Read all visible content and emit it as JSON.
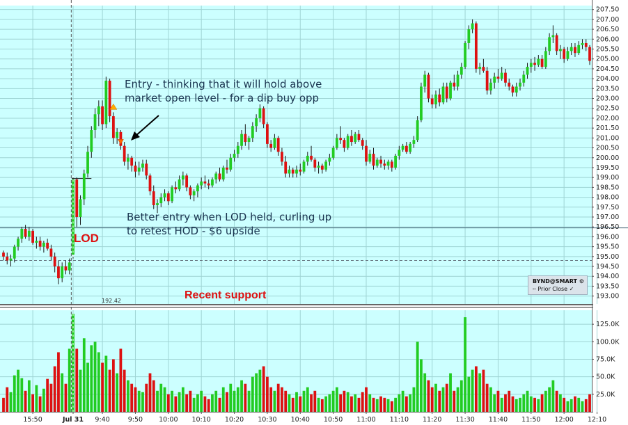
{
  "chart_data": {
    "type": "candlestick",
    "price_panel": {
      "ylim": [
        192.6,
        207.7
      ],
      "ytick_labels": [
        "193.00",
        "193.50",
        "194.00",
        "194.50",
        "195.00",
        "195.50",
        "196.00",
        "196.50",
        "197.00",
        "197.50",
        "198.00",
        "198.50",
        "199.00",
        "199.50",
        "200.00",
        "200.50",
        "201.00",
        "201.50",
        "202.00",
        "202.50",
        "203.00",
        "203.50",
        "204.00",
        "204.50",
        "205.00",
        "205.50",
        "206.00",
        "206.50",
        "207.00",
        "207.50"
      ],
      "support_value": "192.42",
      "resistance_line": 196.45,
      "prior_close": 194.8,
      "lod_open_marker": 198.95
    },
    "volume_panel": {
      "ylim": [
        0,
        145000
      ],
      "ytick_values": [
        25000,
        50000,
        75000,
        100000,
        125000
      ],
      "ytick_labels": [
        "25.0K",
        "50.0K",
        "75.0K",
        "100.0K",
        "125.0K"
      ]
    },
    "x_tick_labels": [
      "15:50",
      "Jul 31",
      "9:40",
      "9:50",
      "10:00",
      "10:10",
      "10:20",
      "10:30",
      "10:40",
      "10:50",
      "11:00",
      "11:10",
      "11:20",
      "11:30",
      "11:40",
      "11:50",
      "12:00",
      "12:10"
    ],
    "x_tick_bars": [
      8,
      19,
      27,
      36,
      45,
      54,
      63,
      72,
      81,
      90,
      99,
      108,
      117,
      126,
      135,
      144,
      153,
      162
    ],
    "day_break_bar": 19,
    "bars": [
      [
        195.2,
        195.3,
        194.8,
        195.0,
        20000
      ],
      [
        195.0,
        195.2,
        194.6,
        194.8,
        35000
      ],
      [
        194.8,
        195.1,
        194.5,
        194.9,
        28000
      ],
      [
        194.9,
        195.6,
        194.7,
        195.5,
        52000
      ],
      [
        195.5,
        196.0,
        195.3,
        195.9,
        60000
      ],
      [
        195.9,
        196.5,
        195.7,
        196.4,
        48000
      ],
      [
        196.4,
        196.6,
        195.9,
        196.0,
        30000
      ],
      [
        196.0,
        196.5,
        195.8,
        196.3,
        45000
      ],
      [
        196.3,
        196.4,
        195.6,
        195.7,
        25000
      ],
      [
        195.7,
        196.0,
        195.4,
        195.8,
        38000
      ],
      [
        195.8,
        196.0,
        195.3,
        195.5,
        22000
      ],
      [
        195.5,
        195.8,
        195.2,
        195.7,
        33000
      ],
      [
        195.7,
        195.9,
        195.3,
        195.4,
        47000
      ],
      [
        195.4,
        195.6,
        194.8,
        195.0,
        40000
      ],
      [
        195.0,
        195.2,
        194.2,
        194.5,
        65000
      ],
      [
        194.5,
        194.8,
        193.6,
        193.9,
        85000
      ],
      [
        193.9,
        194.7,
        193.7,
        194.5,
        55000
      ],
      [
        194.5,
        194.8,
        194.1,
        194.3,
        40000
      ],
      [
        194.3,
        194.9,
        194.1,
        194.7,
        90000
      ],
      [
        195.1,
        199.1,
        194.9,
        198.9,
        140000
      ],
      [
        198.9,
        199.0,
        196.5,
        197.0,
        90000
      ],
      [
        197.0,
        198.1,
        196.6,
        197.9,
        60000
      ],
      [
        197.9,
        199.4,
        197.6,
        199.2,
        105000
      ],
      [
        199.2,
        200.6,
        199.0,
        200.3,
        70000
      ],
      [
        200.3,
        201.6,
        200.0,
        201.4,
        95000
      ],
      [
        201.4,
        202.5,
        201.0,
        202.2,
        100000
      ],
      [
        202.2,
        202.9,
        201.6,
        202.6,
        85000
      ],
      [
        202.6,
        202.9,
        201.4,
        201.7,
        70000
      ],
      [
        201.7,
        204.1,
        201.5,
        203.9,
        80000
      ],
      [
        203.9,
        204.0,
        201.8,
        202.1,
        60000
      ],
      [
        202.1,
        202.3,
        200.7,
        201.0,
        75000
      ],
      [
        201.0,
        201.5,
        200.7,
        201.3,
        55000
      ],
      [
        201.3,
        201.4,
        200.4,
        200.6,
        90000
      ],
      [
        200.6,
        200.8,
        199.6,
        199.8,
        60000
      ],
      [
        199.8,
        200.2,
        199.4,
        200.0,
        45000
      ],
      [
        200.0,
        200.1,
        199.3,
        199.6,
        40000
      ],
      [
        199.6,
        199.8,
        199.0,
        199.3,
        35000
      ],
      [
        199.3,
        199.8,
        199.1,
        199.5,
        30000
      ],
      [
        199.5,
        199.9,
        199.3,
        199.7,
        28000
      ],
      [
        199.7,
        199.9,
        198.9,
        199.1,
        40000
      ],
      [
        199.1,
        199.2,
        198.1,
        198.3,
        55000
      ],
      [
        198.3,
        198.6,
        197.4,
        197.6,
        45000
      ],
      [
        197.6,
        197.9,
        197.2,
        197.7,
        30000
      ],
      [
        197.7,
        198.2,
        197.5,
        198.0,
        40000
      ],
      [
        198.0,
        198.4,
        197.8,
        198.2,
        35000
      ],
      [
        198.2,
        198.3,
        197.6,
        197.8,
        25000
      ],
      [
        197.8,
        198.6,
        197.7,
        198.5,
        30000
      ],
      [
        198.5,
        198.8,
        198.2,
        198.4,
        22000
      ],
      [
        198.4,
        199.1,
        198.3,
        198.9,
        28000
      ],
      [
        198.9,
        199.3,
        198.6,
        199.1,
        35000
      ],
      [
        199.1,
        199.2,
        198.3,
        198.5,
        25000
      ],
      [
        198.5,
        198.6,
        197.9,
        198.1,
        30000
      ],
      [
        198.1,
        198.4,
        197.8,
        198.3,
        20000
      ],
      [
        198.3,
        198.7,
        198.0,
        198.6,
        25000
      ],
      [
        198.6,
        199.0,
        198.4,
        198.8,
        30000
      ],
      [
        198.8,
        199.1,
        198.5,
        198.7,
        22000
      ],
      [
        198.7,
        198.9,
        198.4,
        198.6,
        18000
      ],
      [
        198.6,
        199.0,
        198.5,
        198.9,
        25000
      ],
      [
        198.9,
        199.3,
        198.7,
        199.2,
        30000
      ],
      [
        199.2,
        199.5,
        198.8,
        198.9,
        20000
      ],
      [
        198.9,
        199.6,
        198.8,
        199.5,
        35000
      ],
      [
        199.5,
        199.9,
        199.2,
        199.4,
        28000
      ],
      [
        199.4,
        200.2,
        199.3,
        200.0,
        40000
      ],
      [
        200.0,
        200.4,
        199.8,
        200.2,
        30000
      ],
      [
        200.2,
        200.8,
        200.0,
        200.6,
        35000
      ],
      [
        200.6,
        201.4,
        200.4,
        201.2,
        45000
      ],
      [
        201.2,
        201.7,
        200.6,
        200.8,
        40000
      ],
      [
        200.8,
        201.1,
        200.4,
        201.0,
        30000
      ],
      [
        201.0,
        201.8,
        200.8,
        201.6,
        50000
      ],
      [
        201.6,
        202.2,
        201.3,
        202.0,
        55000
      ],
      [
        202.0,
        202.7,
        201.8,
        202.5,
        60000
      ],
      [
        202.5,
        202.6,
        201.5,
        201.7,
        65000
      ],
      [
        201.7,
        201.8,
        200.5,
        200.7,
        50000
      ],
      [
        200.7,
        200.9,
        200.3,
        200.5,
        35000
      ],
      [
        200.5,
        201.2,
        200.4,
        201.0,
        30000
      ],
      [
        201.0,
        201.1,
        200.1,
        200.3,
        40000
      ],
      [
        200.3,
        200.5,
        199.6,
        199.8,
        35000
      ],
      [
        199.8,
        200.1,
        199.0,
        199.2,
        30000
      ],
      [
        199.2,
        199.6,
        199.0,
        199.4,
        25000
      ],
      [
        199.4,
        199.5,
        199.0,
        199.2,
        20000
      ],
      [
        199.2,
        199.6,
        199.0,
        199.4,
        28000
      ],
      [
        199.4,
        199.7,
        199.1,
        199.3,
        22000
      ],
      [
        199.3,
        199.9,
        199.2,
        199.8,
        30000
      ],
      [
        199.8,
        200.3,
        199.6,
        200.1,
        35000
      ],
      [
        200.1,
        200.6,
        199.8,
        199.9,
        25000
      ],
      [
        199.9,
        200.0,
        199.3,
        199.5,
        30000
      ],
      [
        199.5,
        199.8,
        199.2,
        199.6,
        20000
      ],
      [
        199.6,
        199.7,
        199.2,
        199.4,
        18000
      ],
      [
        199.4,
        199.9,
        199.3,
        199.8,
        22000
      ],
      [
        199.8,
        200.2,
        199.6,
        200.0,
        25000
      ],
      [
        200.0,
        200.6,
        199.9,
        200.5,
        30000
      ],
      [
        200.5,
        201.2,
        200.4,
        201.0,
        35000
      ],
      [
        201.0,
        201.6,
        200.7,
        200.9,
        25000
      ],
      [
        200.9,
        201.0,
        200.3,
        200.5,
        30000
      ],
      [
        200.5,
        201.2,
        200.4,
        201.1,
        28000
      ],
      [
        201.1,
        201.4,
        200.6,
        200.8,
        22000
      ],
      [
        200.8,
        201.3,
        200.7,
        201.2,
        25000
      ],
      [
        201.2,
        201.4,
        200.8,
        200.9,
        20000
      ],
      [
        200.9,
        201.0,
        200.4,
        200.6,
        28000
      ],
      [
        200.6,
        200.9,
        199.6,
        199.8,
        35000
      ],
      [
        199.8,
        200.4,
        199.7,
        200.2,
        25000
      ],
      [
        200.2,
        200.5,
        199.4,
        199.6,
        20000
      ],
      [
        199.6,
        200.0,
        199.5,
        199.9,
        18000
      ],
      [
        199.9,
        200.1,
        199.5,
        199.7,
        22000
      ],
      [
        199.7,
        199.9,
        199.4,
        199.6,
        20000
      ],
      [
        199.6,
        199.9,
        199.4,
        199.8,
        18000
      ],
      [
        199.8,
        199.9,
        199.3,
        199.5,
        15000
      ],
      [
        199.5,
        200.2,
        199.4,
        200.1,
        20000
      ],
      [
        200.1,
        200.6,
        199.9,
        200.4,
        25000
      ],
      [
        200.4,
        200.7,
        200.3,
        200.6,
        30000
      ],
      [
        200.6,
        200.8,
        200.2,
        200.3,
        22000
      ],
      [
        200.3,
        200.8,
        200.2,
        200.7,
        25000
      ],
      [
        200.7,
        201.1,
        200.5,
        200.9,
        35000
      ],
      [
        200.9,
        202.1,
        200.8,
        201.9,
        100000
      ],
      [
        201.9,
        203.8,
        201.8,
        203.6,
        75000
      ],
      [
        203.6,
        204.4,
        203.3,
        204.2,
        55000
      ],
      [
        204.2,
        204.3,
        202.8,
        203.0,
        45000
      ],
      [
        203.0,
        203.2,
        202.5,
        202.7,
        35000
      ],
      [
        202.7,
        203.4,
        202.5,
        203.2,
        40000
      ],
      [
        203.2,
        203.5,
        202.6,
        202.8,
        30000
      ],
      [
        202.8,
        203.8,
        202.7,
        203.6,
        35000
      ],
      [
        203.6,
        203.8,
        202.8,
        203.0,
        40000
      ],
      [
        203.0,
        203.9,
        202.9,
        203.8,
        55000
      ],
      [
        203.8,
        204.2,
        203.4,
        203.6,
        30000
      ],
      [
        203.6,
        204.4,
        203.4,
        204.2,
        35000
      ],
      [
        204.2,
        204.8,
        204.0,
        204.6,
        45000
      ],
      [
        204.6,
        205.9,
        204.5,
        205.8,
        135000
      ],
      [
        205.8,
        206.7,
        205.5,
        206.5,
        50000
      ],
      [
        206.5,
        207.0,
        206.3,
        206.8,
        60000
      ],
      [
        206.8,
        206.9,
        204.3,
        204.5,
        65000
      ],
      [
        204.5,
        204.8,
        204.2,
        204.6,
        55000
      ],
      [
        204.6,
        205.0,
        204.3,
        204.4,
        60000
      ],
      [
        204.4,
        204.6,
        203.2,
        203.4,
        40000
      ],
      [
        203.4,
        204.0,
        203.2,
        203.8,
        35000
      ],
      [
        203.8,
        204.3,
        203.5,
        204.1,
        25000
      ],
      [
        204.1,
        204.5,
        203.8,
        204.0,
        30000
      ],
      [
        204.0,
        204.6,
        203.9,
        204.3,
        20000
      ],
      [
        204.3,
        204.5,
        203.6,
        203.8,
        25000
      ],
      [
        203.8,
        204.0,
        203.4,
        203.6,
        30000
      ],
      [
        203.6,
        203.7,
        203.1,
        203.3,
        22000
      ],
      [
        203.3,
        203.8,
        203.1,
        203.6,
        18000
      ],
      [
        203.6,
        204.0,
        203.4,
        203.8,
        20000
      ],
      [
        203.8,
        204.4,
        203.6,
        204.2,
        25000
      ],
      [
        204.2,
        204.8,
        204.0,
        204.6,
        30000
      ],
      [
        204.6,
        205.0,
        204.3,
        204.8,
        22000
      ],
      [
        204.8,
        205.1,
        204.4,
        204.7,
        20000
      ],
      [
        204.7,
        205.2,
        204.6,
        205.0,
        18000
      ],
      [
        205.0,
        205.2,
        204.5,
        204.6,
        25000
      ],
      [
        204.6,
        205.6,
        204.5,
        205.4,
        30000
      ],
      [
        205.4,
        206.3,
        205.2,
        206.1,
        35000
      ],
      [
        206.1,
        206.7,
        205.8,
        206.2,
        45000
      ],
      [
        206.2,
        206.3,
        205.2,
        205.4,
        30000
      ],
      [
        205.4,
        205.7,
        205.0,
        205.5,
        25000
      ],
      [
        205.5,
        205.6,
        204.8,
        205.0,
        20000
      ],
      [
        205.0,
        205.6,
        204.9,
        205.4,
        15000
      ],
      [
        205.4,
        205.8,
        205.2,
        205.6,
        18000
      ],
      [
        205.6,
        205.8,
        205.1,
        205.3,
        22000
      ],
      [
        205.3,
        205.9,
        205.2,
        205.7,
        20000
      ],
      [
        205.7,
        206.0,
        205.5,
        205.8,
        15000
      ],
      [
        205.8,
        206.0,
        205.4,
        205.6,
        18000
      ],
      [
        205.6,
        205.7,
        204.7,
        204.9,
        25000
      ]
    ]
  },
  "annotations": {
    "entry_line1": "Entry - thinking that it will hold above",
    "entry_line2": "market open level - for a dip buy opp",
    "better_line1": "Better entry when LOD held, curling up",
    "better_line2": "to retest HOD - $6 upside",
    "lod": "LOD",
    "recent_support": "Recent support"
  },
  "legend": {
    "symbol": "BYND@SMART",
    "symbol_glyph": "⚙",
    "prior_close": "Prior Close",
    "check": "✓"
  },
  "colors": {
    "background": "#ccffff",
    "grid": "#9fd4d4",
    "up": "#22cc22",
    "down": "#dd1111",
    "wick": "#1a1a1a",
    "annotation_text": "#1a3550",
    "label_red": "#dd1111",
    "marker_up": "#ffaa00",
    "marker_down": "#ff6600"
  }
}
